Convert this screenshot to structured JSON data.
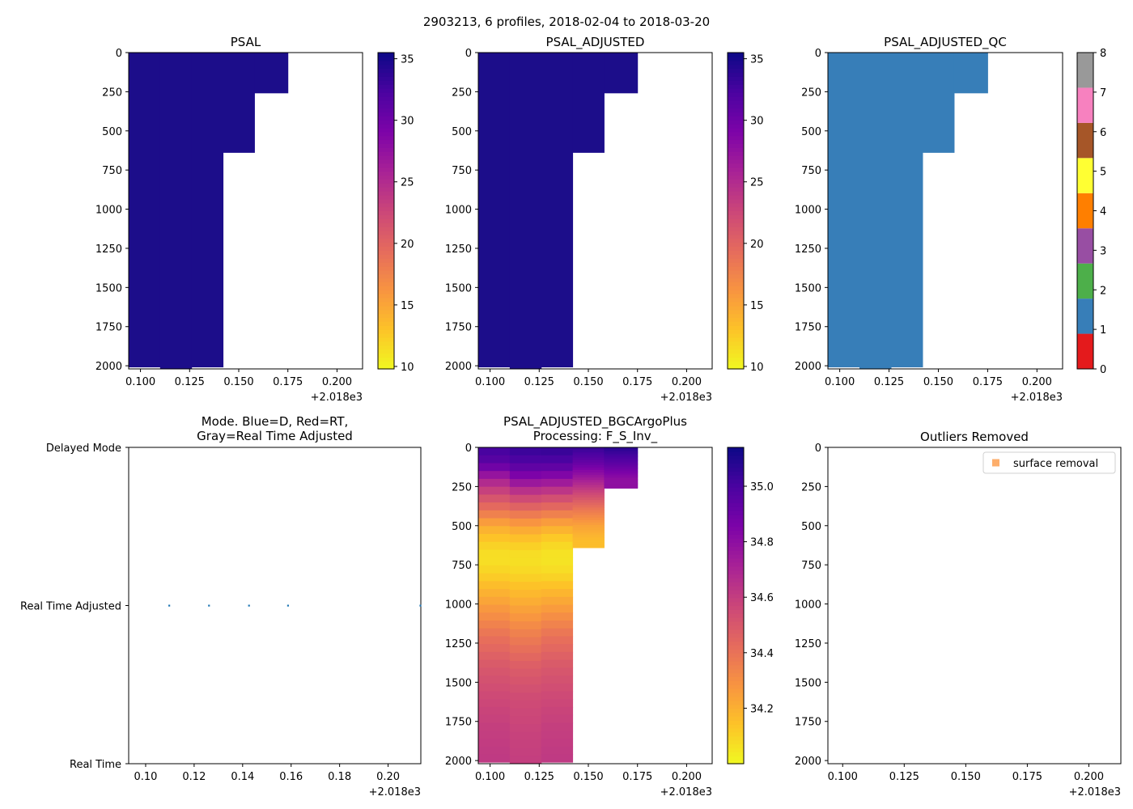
{
  "figure": {
    "suptitle": "2903213, 6 profiles, 2018-02-04 to 2018-03-20"
  },
  "colors": {
    "psal": "#1c0d8a",
    "qc1": "#377eb8",
    "axis": "#000000",
    "dot": "#1f77b4",
    "legend_marker": "#fdae6b"
  },
  "chart_data": [
    {
      "id": "psal",
      "type": "heatmap",
      "title": "PSAL",
      "xlim": [
        0.094,
        0.213
      ],
      "ylim": [
        2020,
        0
      ],
      "xticks": [
        0.1,
        0.125,
        0.15,
        0.175,
        0.2
      ],
      "xtick_labels": [
        "0.100",
        "0.125",
        "0.150",
        "0.175",
        "0.200"
      ],
      "yticks": [
        0,
        250,
        500,
        750,
        1000,
        1250,
        1500,
        1750,
        2000
      ],
      "offset_label": "+2.018e3",
      "profiles": [
        {
          "x0": 0.094,
          "x1": 0.11,
          "ymax": 2010
        },
        {
          "x0": 0.11,
          "x1": 0.126,
          "ymax": 2020
        },
        {
          "x0": 0.126,
          "x1": 0.142,
          "ymax": 2010
        },
        {
          "x0": 0.142,
          "x1": 0.158,
          "ymax": 640
        },
        {
          "x0": 0.158,
          "x1": 0.175,
          "ymax": 260
        }
      ],
      "colorbar": {
        "cmap": "plasma_r",
        "ticks": [
          10,
          15,
          20,
          25,
          30,
          35
        ],
        "tick_labels": [
          "10",
          "15",
          "20",
          "25",
          "30",
          "35"
        ],
        "range": [
          9.8,
          35.5
        ]
      }
    },
    {
      "id": "psal_adj",
      "type": "heatmap",
      "title": "PSAL_ADJUSTED",
      "xlim": [
        0.094,
        0.213
      ],
      "ylim": [
        2020,
        0
      ],
      "xticks": [
        0.1,
        0.125,
        0.15,
        0.175,
        0.2
      ],
      "xtick_labels": [
        "0.100",
        "0.125",
        "0.150",
        "0.175",
        "0.200"
      ],
      "yticks": [
        0,
        250,
        500,
        750,
        1000,
        1250,
        1500,
        1750,
        2000
      ],
      "offset_label": "+2.018e3",
      "profiles": [
        {
          "x0": 0.094,
          "x1": 0.11,
          "ymax": 2010
        },
        {
          "x0": 0.11,
          "x1": 0.126,
          "ymax": 2020
        },
        {
          "x0": 0.126,
          "x1": 0.142,
          "ymax": 2010
        },
        {
          "x0": 0.142,
          "x1": 0.158,
          "ymax": 640
        },
        {
          "x0": 0.158,
          "x1": 0.175,
          "ymax": 260
        }
      ],
      "colorbar": {
        "cmap": "plasma_r",
        "ticks": [
          10,
          15,
          20,
          25,
          30,
          35
        ],
        "tick_labels": [
          "10",
          "15",
          "20",
          "25",
          "30",
          "35"
        ],
        "range": [
          9.8,
          35.5
        ]
      }
    },
    {
      "id": "psal_qc",
      "type": "heatmap",
      "title": "PSAL_ADJUSTED_QC",
      "xlim": [
        0.094,
        0.213
      ],
      "ylim": [
        2020,
        0
      ],
      "xticks": [
        0.1,
        0.125,
        0.15,
        0.175,
        0.2
      ],
      "xtick_labels": [
        "0.100",
        "0.125",
        "0.150",
        "0.175",
        "0.200"
      ],
      "yticks": [
        0,
        250,
        500,
        750,
        1000,
        1250,
        1500,
        1750,
        2000
      ],
      "offset_label": "+2.018e3",
      "qc_value": 1,
      "profiles": [
        {
          "x0": 0.094,
          "x1": 0.11,
          "ymax": 2010
        },
        {
          "x0": 0.11,
          "x1": 0.126,
          "ymax": 2020
        },
        {
          "x0": 0.126,
          "x1": 0.142,
          "ymax": 2010
        },
        {
          "x0": 0.142,
          "x1": 0.158,
          "ymax": 640
        },
        {
          "x0": 0.158,
          "x1": 0.175,
          "ymax": 260
        }
      ],
      "colorbar": {
        "cmap": "qc",
        "ticks": [
          0,
          1,
          2,
          3,
          4,
          5,
          6,
          7,
          8
        ],
        "tick_labels": [
          "0",
          "1",
          "2",
          "3",
          "4",
          "5",
          "6",
          "7",
          "8"
        ],
        "range": [
          0,
          8
        ],
        "bands": [
          "#e41a1c",
          "#377eb8",
          "#4daf4a",
          "#984ea3",
          "#ff7f00",
          "#ffff33",
          "#a65628",
          "#f781bf",
          "#999999"
        ]
      }
    },
    {
      "id": "mode",
      "type": "scatter",
      "title_lines": [
        "Mode. Blue=D, Red=RT,",
        "Gray=Real Time Adjusted"
      ],
      "xlim": [
        0.093,
        0.2135
      ],
      "ylim": [
        0,
        2
      ],
      "xticks": [
        0.1,
        0.12,
        0.14,
        0.16,
        0.18,
        0.2
      ],
      "xtick_labels": [
        "0.10",
        "0.12",
        "0.14",
        "0.16",
        "0.18",
        "0.20"
      ],
      "yticks": [
        0,
        1,
        2
      ],
      "ytick_labels": [
        "Real Time",
        "Real Time Adjusted",
        "Delayed Mode"
      ],
      "offset_label": "+2.018e3",
      "points": [
        {
          "x": 0.1097,
          "y": 1
        },
        {
          "x": 0.1261,
          "y": 1
        },
        {
          "x": 0.1426,
          "y": 1
        },
        {
          "x": 0.1587,
          "y": 1
        },
        {
          "x": 0.2133,
          "y": 1
        }
      ]
    },
    {
      "id": "bgc",
      "type": "heatmap",
      "title_lines": [
        "PSAL_ADJUSTED_BGCArgoPlus",
        "Processing: F_S_Inv_"
      ],
      "xlim": [
        0.094,
        0.213
      ],
      "ylim": [
        2020,
        0
      ],
      "xticks": [
        0.1,
        0.125,
        0.15,
        0.175,
        0.2
      ],
      "xtick_labels": [
        "0.100",
        "0.125",
        "0.150",
        "0.175",
        "0.200"
      ],
      "yticks": [
        0,
        250,
        500,
        750,
        1000,
        1250,
        1500,
        1750,
        2000
      ],
      "offset_label": "+2.018e3",
      "depth_levels": [
        0,
        100,
        200,
        300,
        400,
        500,
        600,
        700,
        800,
        1000,
        1200,
        1400,
        1600,
        1800,
        2000
      ],
      "profiles": [
        {
          "x0": 0.094,
          "x1": 0.11,
          "ymax": 2010,
          "values": [
            35.02,
            34.95,
            34.72,
            34.55,
            34.4,
            34.22,
            34.12,
            34.06,
            34.1,
            34.25,
            34.4,
            34.5,
            34.56,
            34.6,
            34.62
          ]
        },
        {
          "x0": 0.11,
          "x1": 0.126,
          "ymax": 2020,
          "values": [
            35.05,
            34.98,
            34.82,
            34.6,
            34.42,
            34.25,
            34.13,
            34.06,
            34.09,
            34.22,
            34.36,
            34.48,
            34.55,
            34.58,
            34.6
          ]
        },
        {
          "x0": 0.126,
          "x1": 0.142,
          "ymax": 2010,
          "values": [
            35.06,
            34.98,
            34.8,
            34.58,
            34.4,
            34.22,
            34.1,
            34.05,
            34.08,
            34.24,
            34.4,
            34.5,
            34.56,
            34.6,
            34.62
          ]
        },
        {
          "x0": 0.142,
          "x1": 0.158,
          "ymax": 640,
          "values": [
            35.05,
            34.92,
            34.74,
            34.55,
            34.38,
            34.24,
            34.16
          ]
        },
        {
          "x0": 0.158,
          "x1": 0.175,
          "ymax": 260,
          "values": [
            35.08,
            34.95,
            34.8
          ]
        }
      ],
      "colorbar": {
        "cmap": "plasma_r",
        "ticks": [
          34.2,
          34.4,
          34.6,
          34.8,
          35.0
        ],
        "tick_labels": [
          "34.2",
          "34.4",
          "34.6",
          "34.8",
          "35.0"
        ],
        "range": [
          34.0,
          35.14
        ]
      }
    },
    {
      "id": "outliers",
      "type": "scatter",
      "title": "Outliers Removed",
      "xlim": [
        0.094,
        0.213
      ],
      "ylim": [
        2020,
        0
      ],
      "xticks": [
        0.1,
        0.125,
        0.15,
        0.175,
        0.2
      ],
      "xtick_labels": [
        "0.100",
        "0.125",
        "0.150",
        "0.175",
        "0.200"
      ],
      "yticks": [
        0,
        250,
        500,
        750,
        1000,
        1250,
        1500,
        1750,
        2000
      ],
      "offset_label": "+2.018e3",
      "legend": [
        "surface removal"
      ],
      "legend_position": "top-right",
      "points": []
    }
  ]
}
